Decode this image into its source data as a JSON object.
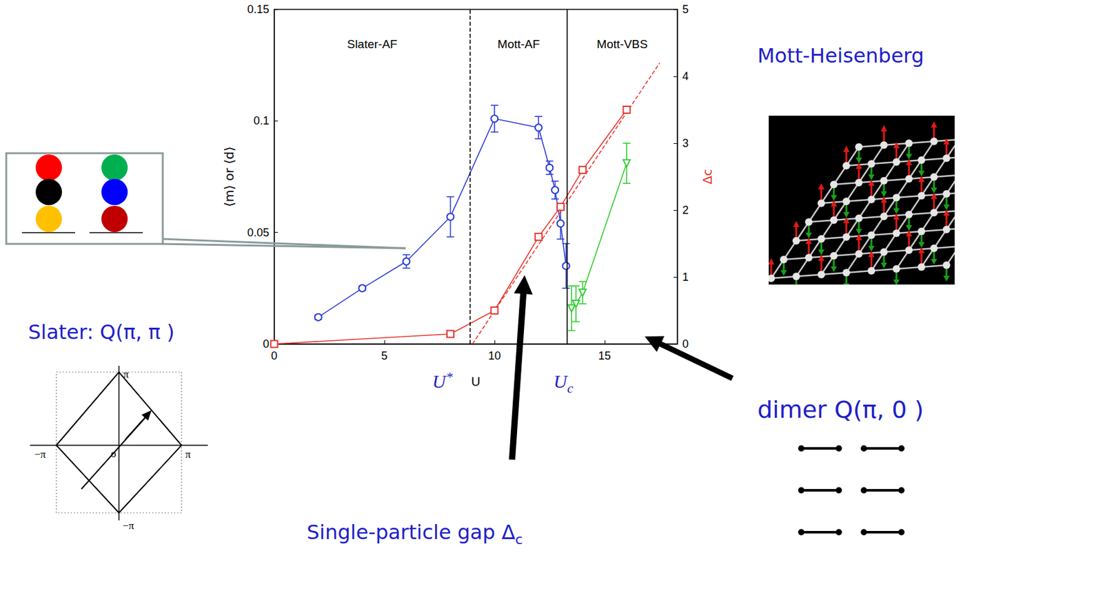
{
  "chart_data": {
    "type": "line",
    "x_label": "U",
    "y_label": "⟨m⟩ or ⟨d⟩",
    "y2_label": "Δc",
    "xlim": [
      0,
      18.3
    ],
    "xticks": [
      0,
      5,
      10,
      15
    ],
    "ylim": [
      0,
      0.15
    ],
    "yticks": [
      0,
      0.05,
      0.1,
      0.15
    ],
    "y2lim": [
      0,
      5
    ],
    "y2ticks": [
      0,
      1,
      2,
      3,
      4,
      5
    ],
    "grid": false,
    "regions": [
      "Slater-AF",
      "Mott-AF",
      "Mott-VBS"
    ],
    "boundaries": [
      {
        "value": 8.9,
        "label": "U*",
        "line_style": "dashed"
      },
      {
        "value": 13.3,
        "label": "Uc",
        "line_style": "solid"
      }
    ],
    "series": [
      {
        "color": "#2b3bd6",
        "marker": "open_circle",
        "line_style": "solid",
        "x": [
          2,
          4,
          6,
          8,
          10,
          12,
          12.5,
          12.75,
          13,
          13.25
        ],
        "values": [
          0.012,
          0.025,
          0.037,
          0.057,
          0.101,
          0.097,
          0.079,
          0.069,
          0.054,
          0.035
        ],
        "errors": [
          0.001,
          0.001,
          0.003,
          0.009,
          0.006,
          0.005,
          0.003,
          0.004,
          0.007,
          0.01
        ]
      },
      {
        "color": "#e8312a",
        "marker": "open_square",
        "line_style": "solid",
        "axis": "y2",
        "x": [
          0,
          8,
          10,
          12,
          13,
          14,
          16
        ],
        "values": [
          0,
          0.15,
          0.5,
          1.6,
          2.05,
          2.6,
          3.5
        ]
      },
      {
        "color": "#e8312a",
        "marker": "none",
        "line_style": "dashed",
        "axis": "y2",
        "x": [
          9,
          17.5
        ],
        "values": [
          0,
          4.2
        ]
      },
      {
        "color": "#2ecc2e",
        "marker": "open_triangle_down",
        "line_style": "solid",
        "x": [
          13.5,
          13.7,
          14,
          16
        ],
        "values": [
          0.016,
          0.018,
          0.023,
          0.081
        ],
        "errors": [
          0.01,
          0.008,
          0.005,
          0.009
        ]
      }
    ]
  },
  "slide": {
    "slater_label": "Slater: Q(π, π )",
    "bz_labels": {
      "top": "π",
      "right": "π",
      "left": "−π",
      "bottom": "−π",
      "origin": "o"
    },
    "mott_label": "Mott-Heisenberg",
    "dimer_label": "dimer Q(π, 0 )",
    "gap_label": "Single-particle gap Δc"
  }
}
